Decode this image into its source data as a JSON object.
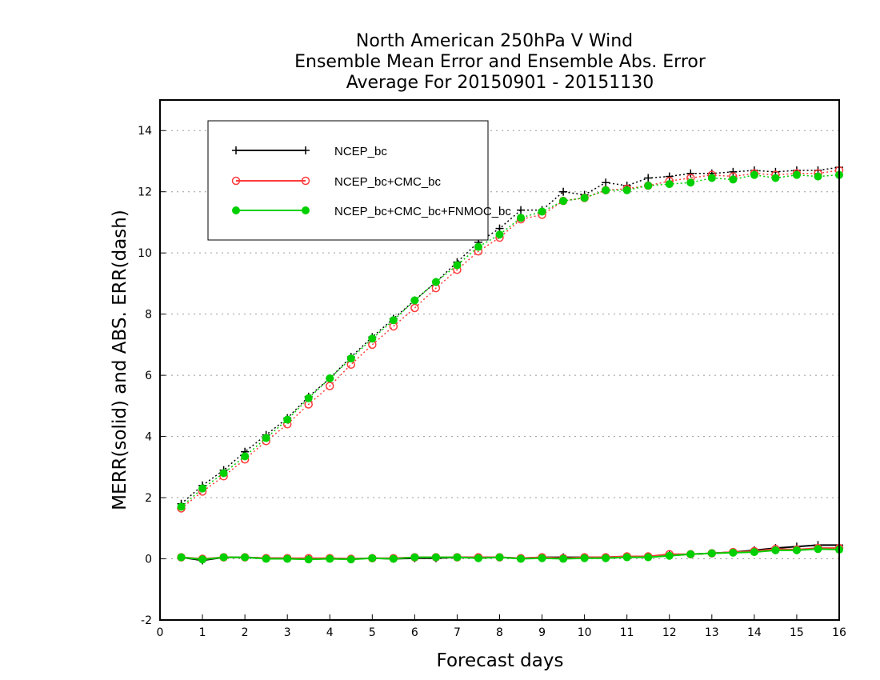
{
  "chart_data": {
    "type": "line",
    "title": [
      "North American 250hPa V Wind",
      "Ensemble Mean Error and Ensemble Abs. Error",
      "Average For 20150901 - 20151130"
    ],
    "xlabel": "Forecast days",
    "ylabel": "MERR(solid) and ABS. ERR(dash)",
    "xlim": [
      0,
      16
    ],
    "ylim": [
      -2,
      15
    ],
    "xticks": [
      "0",
      "1",
      "2",
      "3",
      "4",
      "5",
      "6",
      "7",
      "8",
      "9",
      "10",
      "11",
      "12",
      "13",
      "14",
      "15",
      "16"
    ],
    "yticks": [
      "-2",
      "0",
      "2",
      "4",
      "6",
      "8",
      "10",
      "12",
      "14"
    ],
    "grid": "horizontal dotted",
    "legend_position": "top-left",
    "x": [
      0.5,
      1,
      1.5,
      2,
      2.5,
      3,
      3.5,
      4,
      4.5,
      5,
      5.5,
      6,
      6.5,
      7,
      7.5,
      8,
      8.5,
      9,
      9.5,
      10,
      10.5,
      11,
      11.5,
      12,
      12.5,
      13,
      13.5,
      14,
      14.5,
      15,
      15.5,
      16
    ],
    "series": [
      {
        "name": "NCEP_bc",
        "color": "#000000",
        "marker": "plus",
        "abs_err": [
          1.8,
          2.4,
          2.9,
          3.5,
          4.05,
          4.6,
          5.3,
          5.9,
          6.6,
          7.25,
          7.85,
          8.45,
          9.05,
          9.7,
          10.35,
          10.8,
          11.4,
          11.4,
          12.0,
          11.9,
          12.3,
          12.2,
          12.45,
          12.5,
          12.6,
          12.6,
          12.65,
          12.7,
          12.65,
          12.7,
          12.7,
          12.8
        ],
        "mean_err": [
          0.05,
          -0.05,
          0.05,
          0.05,
          0.02,
          0.02,
          0.0,
          0.02,
          0.0,
          0.02,
          0.0,
          0.02,
          0.02,
          0.05,
          0.05,
          0.05,
          0.02,
          0.05,
          0.05,
          0.05,
          0.05,
          0.08,
          0.08,
          0.12,
          0.15,
          0.18,
          0.22,
          0.28,
          0.35,
          0.4,
          0.45,
          0.45
        ]
      },
      {
        "name": "NCEP_bc+CMC_bc",
        "color": "#ff3b3b",
        "marker": "open-circle",
        "abs_err": [
          1.65,
          2.2,
          2.7,
          3.25,
          3.85,
          4.4,
          5.05,
          5.65,
          6.35,
          7.0,
          7.6,
          8.2,
          8.85,
          9.45,
          10.05,
          10.5,
          11.1,
          11.25,
          11.7,
          11.8,
          12.05,
          12.1,
          12.2,
          12.35,
          12.45,
          12.55,
          12.5,
          12.6,
          12.55,
          12.6,
          12.6,
          12.7
        ],
        "mean_err": [
          0.05,
          0.0,
          0.05,
          0.05,
          0.02,
          0.02,
          0.02,
          0.02,
          0.0,
          0.02,
          0.02,
          0.05,
          0.05,
          0.05,
          0.05,
          0.05,
          0.02,
          0.05,
          0.02,
          0.05,
          0.05,
          0.08,
          0.08,
          0.15,
          0.15,
          0.18,
          0.22,
          0.25,
          0.32,
          0.3,
          0.35,
          0.35
        ]
      },
      {
        "name": "NCEP_bc+CMC_bc+FNMOC_bc",
        "color": "#00d000",
        "marker": "filled-circle",
        "abs_err": [
          1.7,
          2.3,
          2.8,
          3.35,
          3.95,
          4.55,
          5.25,
          5.9,
          6.55,
          7.2,
          7.8,
          8.45,
          9.05,
          9.6,
          10.2,
          10.6,
          11.15,
          11.35,
          11.7,
          11.8,
          12.05,
          12.05,
          12.2,
          12.25,
          12.3,
          12.45,
          12.4,
          12.55,
          12.45,
          12.55,
          12.5,
          12.55
        ],
        "mean_err": [
          0.05,
          -0.02,
          0.05,
          0.05,
          0.0,
          0.0,
          -0.02,
          0.0,
          -0.02,
          0.02,
          0.0,
          0.05,
          0.05,
          0.05,
          0.02,
          0.05,
          0.0,
          0.02,
          0.0,
          0.02,
          0.02,
          0.05,
          0.05,
          0.1,
          0.15,
          0.18,
          0.2,
          0.22,
          0.28,
          0.28,
          0.32,
          0.3
        ]
      }
    ]
  }
}
